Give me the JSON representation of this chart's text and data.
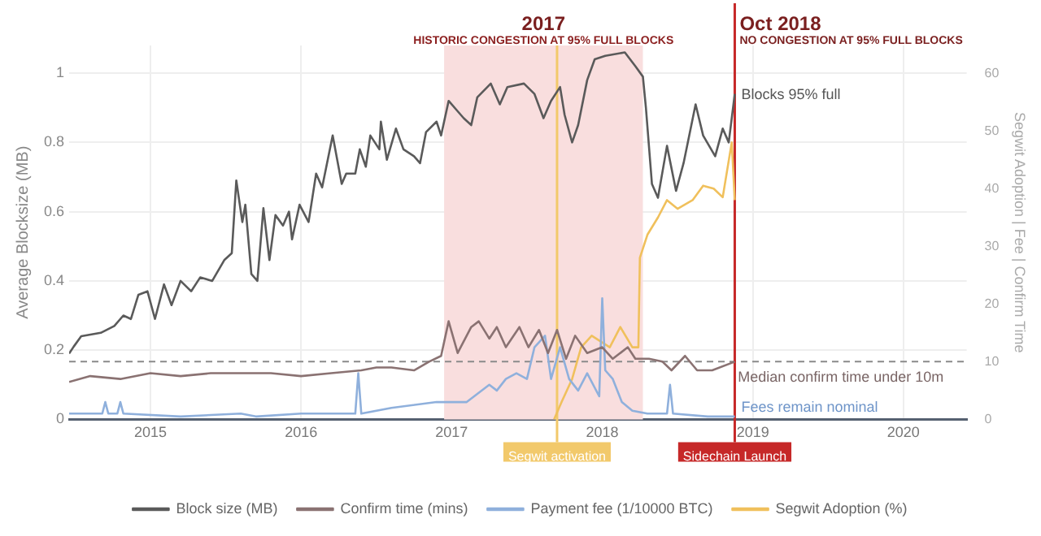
{
  "chart_data": {
    "type": "line",
    "xlabel": null,
    "ylabel": "Average Blocksize (MB)",
    "y2label": "Segwit Adoption | Fee | Confirm Time",
    "xlim": [
      2014.46,
      2020.42
    ],
    "xticks": [
      2015,
      2016,
      2017,
      2018,
      2019,
      2020
    ],
    "ylim": [
      0,
      1.08
    ],
    "yticks": [
      0,
      0.2,
      0.4,
      0.6,
      0.8,
      1
    ],
    "y2lim": [
      0,
      64.8
    ],
    "y2ticks": [
      0,
      10,
      20,
      30,
      40,
      50,
      60
    ],
    "grid": true,
    "legend": "bottom",
    "marker": "none",
    "line_style": "solid",
    "series": [
      {
        "name": "Block size (MB)",
        "color": "#5a5a5a",
        "x": [
          2014.46,
          2014.49,
          2014.54,
          2014.67,
          2014.76,
          2014.82,
          2014.87,
          2014.92,
          2014.98,
          2015.03,
          2015.09,
          2015.14,
          2015.2,
          2015.27,
          2015.33,
          2015.41,
          2015.49,
          2015.54,
          2015.57,
          2015.61,
          2015.63,
          2015.67,
          2015.71,
          2015.75,
          2015.79,
          2015.83,
          2015.88,
          2015.92,
          2015.94,
          2015.99,
          2016.05,
          2016.1,
          2016.14,
          2016.21,
          2016.27,
          2016.3,
          2016.36,
          2016.39,
          2016.43,
          2016.46,
          2016.52,
          2016.53,
          2016.57,
          2016.63,
          2016.68,
          2016.75,
          2016.79,
          2016.83,
          2016.9,
          2016.93,
          2016.98,
          2017.04,
          2017.08,
          2017.13,
          2017.17,
          2017.26,
          2017.32,
          2017.37,
          2017.48,
          2017.55,
          2017.61,
          2017.66,
          2017.72,
          2017.75,
          2017.8,
          2017.84,
          2017.9,
          2017.95,
          2018.02,
          2018.15,
          2018.22,
          2018.27,
          2018.29,
          2018.33,
          2018.37,
          2018.43,
          2018.49,
          2018.54,
          2018.62,
          2018.67,
          2018.75,
          2018.8,
          2018.84,
          2018.88
        ],
        "values": [
          0.19,
          0.21,
          0.24,
          0.25,
          0.27,
          0.3,
          0.29,
          0.36,
          0.37,
          0.29,
          0.39,
          0.33,
          0.4,
          0.37,
          0.41,
          0.4,
          0.46,
          0.48,
          0.69,
          0.57,
          0.62,
          0.42,
          0.4,
          0.61,
          0.46,
          0.59,
          0.56,
          0.6,
          0.52,
          0.62,
          0.57,
          0.71,
          0.67,
          0.82,
          0.68,
          0.71,
          0.71,
          0.78,
          0.73,
          0.82,
          0.78,
          0.86,
          0.75,
          0.84,
          0.78,
          0.76,
          0.74,
          0.83,
          0.86,
          0.82,
          0.92,
          0.89,
          0.87,
          0.85,
          0.93,
          0.97,
          0.91,
          0.96,
          0.97,
          0.94,
          0.87,
          0.92,
          0.96,
          0.88,
          0.8,
          0.85,
          0.98,
          1.04,
          1.05,
          1.06,
          1.02,
          0.99,
          0.9,
          0.68,
          0.64,
          0.79,
          0.66,
          0.74,
          0.91,
          0.82,
          0.76,
          0.84,
          0.8,
          0.94
        ]
      },
      {
        "name": "Confirm time (mins)",
        "color": "#8a7272",
        "axis": "y2",
        "x": [
          2014.46,
          2014.6,
          2014.8,
          2015.0,
          2015.2,
          2015.4,
          2015.6,
          2015.8,
          2016.0,
          2016.2,
          2016.4,
          2016.5,
          2016.6,
          2016.75,
          2016.85,
          2016.93,
          2016.98,
          2017.04,
          2017.13,
          2017.18,
          2017.25,
          2017.3,
          2017.36,
          2017.45,
          2017.51,
          2017.58,
          2017.64,
          2017.7,
          2017.76,
          2017.82,
          2017.9,
          2018.0,
          2018.07,
          2018.17,
          2018.22,
          2018.31,
          2018.4,
          2018.46,
          2018.55,
          2018.63,
          2018.73,
          2018.88
        ],
        "values": [
          6.5,
          7.5,
          7,
          8,
          7.5,
          8,
          8,
          8,
          7.5,
          8,
          8.5,
          9,
          9,
          8.5,
          10,
          11,
          17,
          11.5,
          16,
          17,
          14,
          16,
          12.5,
          16,
          12.5,
          15.5,
          11.5,
          15.5,
          10.5,
          14.5,
          11.5,
          12.5,
          10.5,
          12.5,
          10.5,
          10.5,
          10,
          8.5,
          11,
          8.5,
          8.5,
          10
        ]
      },
      {
        "name": "Payment fee (1/10000 BTC)",
        "color": "#8fb0dc",
        "axis": "y2",
        "x": [
          2014.46,
          2014.68,
          2014.7,
          2014.72,
          2014.78,
          2014.8,
          2014.82,
          2015.2,
          2015.6,
          2015.7,
          2016.0,
          2016.36,
          2016.38,
          2016.4,
          2016.6,
          2016.9,
          2017.1,
          2017.25,
          2017.3,
          2017.36,
          2017.43,
          2017.5,
          2017.55,
          2017.62,
          2017.66,
          2017.72,
          2017.78,
          2017.84,
          2017.9,
          2017.98,
          2018.0,
          2018.02,
          2018.07,
          2018.13,
          2018.2,
          2018.3,
          2018.43,
          2018.45,
          2018.47,
          2018.7,
          2018.88
        ],
        "values": [
          1,
          1,
          3,
          1,
          1,
          3,
          1,
          0.5,
          1,
          0.5,
          1,
          1,
          8,
          1,
          2,
          3,
          3,
          6,
          5,
          7,
          8,
          7,
          12.5,
          14.5,
          7,
          12.5,
          7,
          5,
          8,
          4,
          21,
          8.5,
          7,
          3,
          1.5,
          1,
          1,
          6,
          1,
          0.5,
          0.5
        ]
      },
      {
        "name": "Segwit Adoption (%)",
        "color": "#f0c05c",
        "axis": "y2",
        "x": [
          2017.68,
          2017.73,
          2017.8,
          2017.86,
          2017.93,
          2018.05,
          2018.12,
          2018.2,
          2018.24,
          2018.25,
          2018.3,
          2018.37,
          2018.43,
          2018.5,
          2018.6,
          2018.67,
          2018.74,
          2018.8,
          2018.86,
          2018.88
        ],
        "values": [
          0,
          3,
          7,
          12.5,
          14.5,
          12.5,
          16,
          12.5,
          12.5,
          28,
          32,
          35,
          38,
          36.5,
          38,
          40.5,
          40,
          38.5,
          48,
          38
        ]
      }
    ],
    "bands": [
      {
        "axis": "x",
        "from": 2016.95,
        "to": 2018.27,
        "label": "HISTORIC CONGESTION AT 95% FULL BLOCKS",
        "color": "#f9dede"
      }
    ],
    "ref_lines": [
      {
        "axis": "y2",
        "value": 10,
        "label": "Median confirm time under 10m",
        "color": "#8a8a8a",
        "line_style": "dashed"
      },
      {
        "axis": "x",
        "value": 2017.7,
        "label": "Segwit activation",
        "color": "#f2c96b",
        "line_style": "solid"
      },
      {
        "axis": "x",
        "value": 2018.88,
        "label": "Sidechain Launch",
        "color": "#c62828",
        "line_style": "solid"
      }
    ],
    "annotations": [
      "2017",
      "Oct 2018",
      "NO CONGESTION AT 95% FULL BLOCKS",
      {
        "text": "Blocks 95% full",
        "x": 2018.88,
        "y": 0.95
      },
      {
        "text": "Fees remain nominal",
        "x": 2018.88,
        "y": 0.02
      }
    ]
  }
}
